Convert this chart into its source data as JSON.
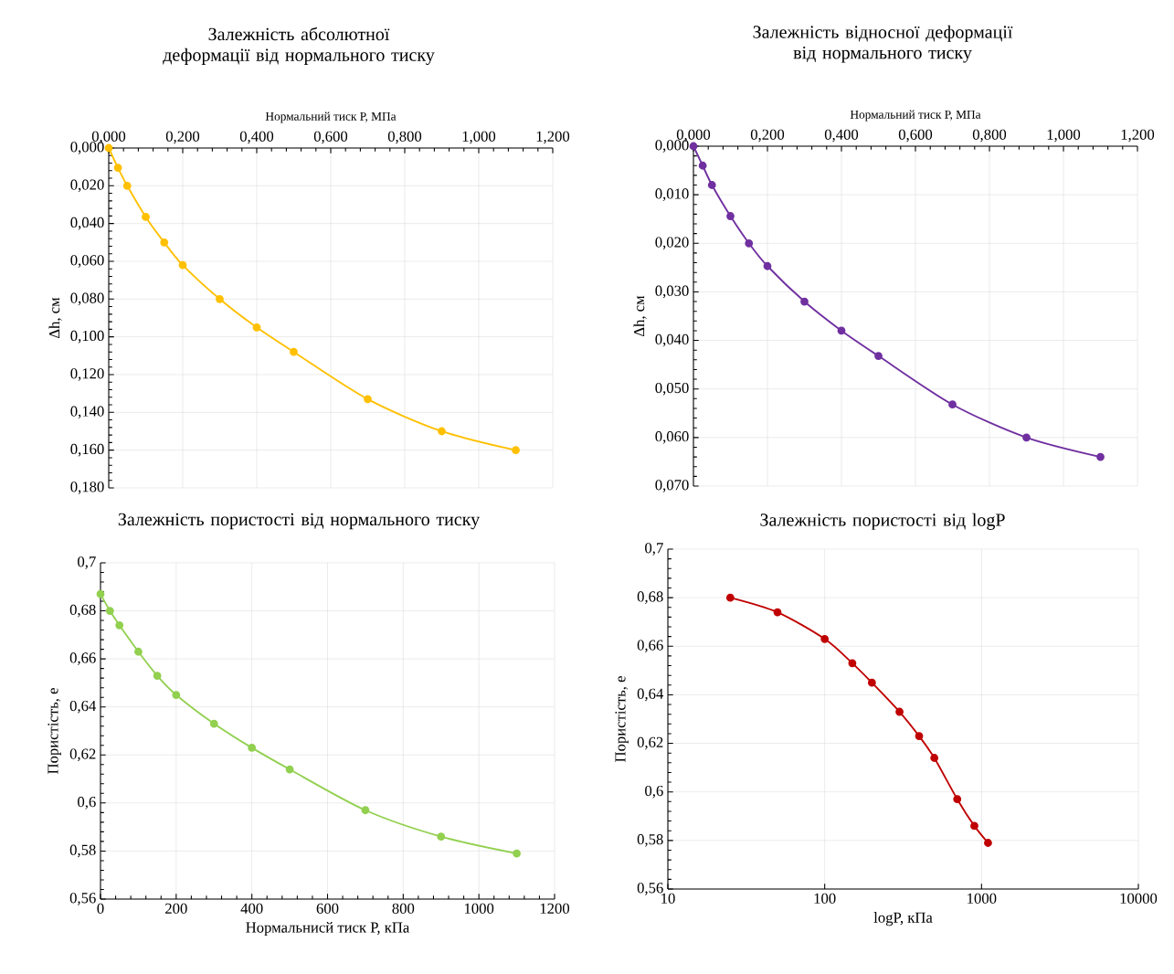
{
  "chart_data": [
    {
      "type": "line",
      "title": "Залежність абсолютної деформації від нормального тиску",
      "xlabel": "Нормальний тиск Р, МПа",
      "ylabel": "Δh, см",
      "x": [
        0,
        0.025,
        0.05,
        0.1,
        0.15,
        0.2,
        0.3,
        0.4,
        0.5,
        0.7,
        0.9,
        1.1
      ],
      "series": [
        {
          "color": "#ffc000",
          "values": [
            0,
            0.0105,
            0.02,
            0.0365,
            0.05,
            0.062,
            0.08,
            0.095,
            0.108,
            0.133,
            0.15,
            0.16
          ]
        }
      ],
      "xlim": [
        0,
        1.2
      ],
      "ylim": [
        0.18,
        0
      ],
      "xticks": [
        {
          "value": 0,
          "label": "0,000"
        },
        {
          "value": 0.2,
          "label": "0,200"
        },
        {
          "value": 0.4,
          "label": "0,400"
        },
        {
          "value": 0.6,
          "label": "0,600"
        },
        {
          "value": 0.8,
          "label": "0,800"
        },
        {
          "value": 1.0,
          "label": "1,000"
        },
        {
          "value": 1.2,
          "label": "1,200"
        }
      ],
      "yticks": [
        {
          "value": 0,
          "label": "0,000"
        },
        {
          "value": 0.02,
          "label": "0,020"
        },
        {
          "value": 0.04,
          "label": "0,040"
        },
        {
          "value": 0.06,
          "label": "0,060"
        },
        {
          "value": 0.08,
          "label": "0,080"
        },
        {
          "value": 0.1,
          "label": "0,100"
        },
        {
          "value": 0.12,
          "label": "0,120"
        },
        {
          "value": 0.14,
          "label": "0,140"
        },
        {
          "value": 0.16,
          "label": "0,160"
        },
        {
          "value": 0.18,
          "label": "0,180"
        }
      ],
      "grid": true,
      "marker": "circle"
    },
    {
      "type": "line",
      "title": "Залежність відносної деформації від нормального тиску",
      "xlabel": "Нормальний тиск Р, МПа",
      "ylabel": "Δh, см",
      "x": [
        0,
        0.025,
        0.05,
        0.1,
        0.15,
        0.2,
        0.3,
        0.4,
        0.5,
        0.7,
        0.9,
        1.1
      ],
      "series": [
        {
          "color": "#7030a0",
          "values": [
            0,
            0.004,
            0.008,
            0.0144,
            0.02,
            0.0247,
            0.032,
            0.038,
            0.0432,
            0.0532,
            0.06,
            0.064
          ]
        }
      ],
      "xlim": [
        0,
        1.2
      ],
      "ylim": [
        0.07,
        0
      ],
      "xticks": [
        {
          "value": 0,
          "label": "0,000"
        },
        {
          "value": 0.2,
          "label": "0,200"
        },
        {
          "value": 0.4,
          "label": "0,400"
        },
        {
          "value": 0.6,
          "label": "0,600"
        },
        {
          "value": 0.8,
          "label": "0,800"
        },
        {
          "value": 1.0,
          "label": "1,000"
        },
        {
          "value": 1.2,
          "label": "1,200"
        }
      ],
      "yticks": [
        {
          "value": 0,
          "label": "0,000"
        },
        {
          "value": 0.01,
          "label": "0,010"
        },
        {
          "value": 0.02,
          "label": "0,020"
        },
        {
          "value": 0.03,
          "label": "0,030"
        },
        {
          "value": 0.04,
          "label": "0,040"
        },
        {
          "value": 0.05,
          "label": "0,050"
        },
        {
          "value": 0.06,
          "label": "0,060"
        },
        {
          "value": 0.07,
          "label": "0,070"
        }
      ],
      "grid": true,
      "marker": "circle"
    },
    {
      "type": "line",
      "title": "Залежність пористості від нормального тиску",
      "xlabel": "Нормальнисй тиск Р, кПа",
      "ylabel": "Пористість, е",
      "x": [
        0,
        25,
        50,
        100,
        150,
        200,
        300,
        400,
        500,
        700,
        900,
        1100
      ],
      "series": [
        {
          "color": "#92d050",
          "values": [
            0.687,
            0.68,
            0.674,
            0.663,
            0.653,
            0.645,
            0.633,
            0.623,
            0.614,
            0.597,
            0.586,
            0.579
          ]
        }
      ],
      "xlim": [
        0,
        1200
      ],
      "ylim": [
        0.56,
        0.7
      ],
      "xticks": [
        0,
        200,
        400,
        600,
        800,
        1000,
        1200
      ],
      "yticks": [
        {
          "value": 0.56,
          "label": "0,56"
        },
        {
          "value": 0.58,
          "label": "0,58"
        },
        {
          "value": 0.6,
          "label": "0,6"
        },
        {
          "value": 0.62,
          "label": "0,62"
        },
        {
          "value": 0.64,
          "label": "0,64"
        },
        {
          "value": 0.66,
          "label": "0,66"
        },
        {
          "value": 0.68,
          "label": "0,68"
        },
        {
          "value": 0.7,
          "label": "0,7"
        }
      ],
      "grid": true,
      "marker": "circle"
    },
    {
      "type": "line",
      "title": "Залежність пористості від logP",
      "xlabel": "logP, кПа",
      "ylabel": "Пористість, е",
      "x": [
        25,
        50,
        100,
        150,
        200,
        300,
        400,
        500,
        700,
        900,
        1100
      ],
      "series": [
        {
          "color": "#c00000",
          "values": [
            0.68,
            0.674,
            0.663,
            0.653,
            0.645,
            0.633,
            0.623,
            0.614,
            0.597,
            0.586,
            0.579
          ]
        }
      ],
      "xlim": [
        10,
        10000
      ],
      "ylim": [
        0.56,
        0.7
      ],
      "log": "x",
      "xticks": [
        10,
        100,
        1000,
        10000
      ],
      "yticks": [
        {
          "value": 0.56,
          "label": "0,56"
        },
        {
          "value": 0.58,
          "label": "0,58"
        },
        {
          "value": 0.6,
          "label": "0,6"
        },
        {
          "value": 0.62,
          "label": "0,62"
        },
        {
          "value": 0.64,
          "label": "0,64"
        },
        {
          "value": 0.66,
          "label": "0,66"
        },
        {
          "value": 0.68,
          "label": "0,68"
        },
        {
          "value": 0.7,
          "label": "0,7"
        }
      ],
      "grid": true,
      "marker": "circle"
    }
  ]
}
